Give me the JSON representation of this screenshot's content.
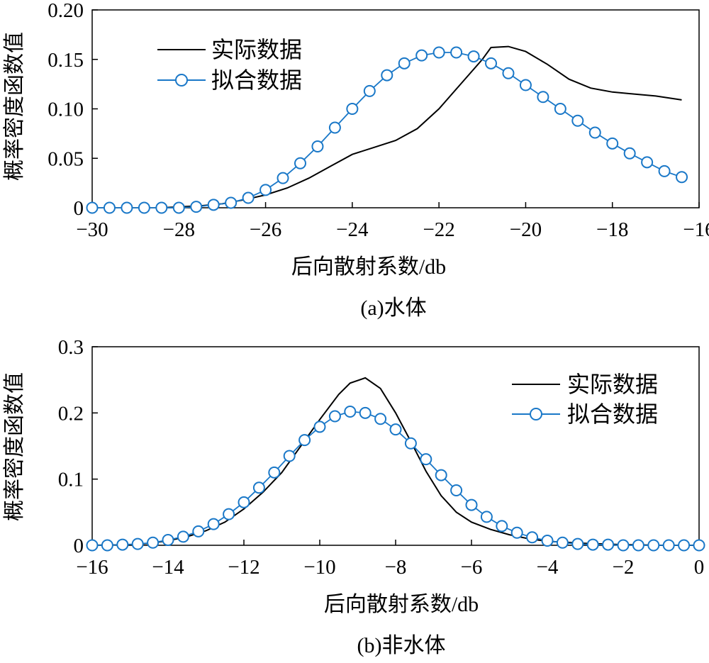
{
  "chart_data": [
    {
      "type": "line",
      "caption": "(a)水体",
      "xlabel": "后向散射系数/db",
      "ylabel": "概率密度函数值",
      "xlim": [
        -30,
        -16
      ],
      "ylim": [
        0,
        0.2
      ],
      "xticks": [
        -30,
        -28,
        -26,
        -24,
        -22,
        -20,
        -18,
        -16
      ],
      "yticks": [
        0,
        0.05,
        0.1,
        0.15,
        0.2
      ],
      "xtick_labels": [
        "−30",
        "−28",
        "−26",
        "−24",
        "−22",
        "−20",
        "−18",
        "−16"
      ],
      "ytick_labels": [
        "0",
        "0.05",
        "0.10",
        "0.15",
        "0.20"
      ],
      "legend_position": "top-left",
      "grid": false,
      "series": [
        {
          "name": "实际数据",
          "style": "line",
          "color": "#000000",
          "x": [
            -28.4,
            -27.5,
            -27.0,
            -26.5,
            -26.0,
            -25.5,
            -25.0,
            -24.5,
            -24.0,
            -23.5,
            -23.0,
            -22.5,
            -22.0,
            -21.5,
            -21.0,
            -20.8,
            -20.4,
            -20.0,
            -19.5,
            -19.0,
            -18.5,
            -18.0,
            -17.5,
            -17.0,
            -16.4
          ],
          "values": [
            0.0,
            0.002,
            0.004,
            0.008,
            0.013,
            0.02,
            0.03,
            0.042,
            0.054,
            0.061,
            0.068,
            0.08,
            0.1,
            0.125,
            0.15,
            0.162,
            0.163,
            0.158,
            0.145,
            0.13,
            0.121,
            0.117,
            0.115,
            0.113,
            0.109
          ]
        },
        {
          "name": "拟合数据",
          "style": "line-circle",
          "color": "#1a78c8",
          "x": [
            -30.0,
            -29.6,
            -29.2,
            -28.8,
            -28.4,
            -28.0,
            -27.6,
            -27.2,
            -26.8,
            -26.4,
            -26.0,
            -25.6,
            -25.2,
            -24.8,
            -24.4,
            -24.0,
            -23.6,
            -23.2,
            -22.8,
            -22.4,
            -22.0,
            -21.6,
            -21.2,
            -20.8,
            -20.4,
            -20.0,
            -19.6,
            -19.2,
            -18.8,
            -18.4,
            -18.0,
            -17.6,
            -17.2,
            -16.8,
            -16.4
          ],
          "values": [
            0.0,
            0.0,
            0.0,
            0.0,
            0.0,
            0.0,
            0.001,
            0.003,
            0.005,
            0.01,
            0.018,
            0.03,
            0.045,
            0.062,
            0.081,
            0.1,
            0.118,
            0.134,
            0.146,
            0.154,
            0.157,
            0.157,
            0.153,
            0.146,
            0.136,
            0.124,
            0.112,
            0.1,
            0.088,
            0.076,
            0.065,
            0.055,
            0.046,
            0.037,
            0.031
          ]
        }
      ]
    },
    {
      "type": "line",
      "caption": "(b)非水体",
      "xlabel": "后向散射系数/db",
      "ylabel": "概率密度函数值",
      "xlim": [
        -16,
        0
      ],
      "ylim": [
        0,
        0.3
      ],
      "xticks": [
        -16,
        -14,
        -12,
        -10,
        -8,
        -6,
        -4,
        -2,
        0
      ],
      "yticks": [
        0,
        0.1,
        0.2,
        0.3
      ],
      "xtick_labels": [
        "−16",
        "−14",
        "−12",
        "−10",
        "−8",
        "−6",
        "−4",
        "−2",
        "0"
      ],
      "ytick_labels": [
        "0",
        "0.1",
        "0.2",
        "0.3"
      ],
      "legend_position": "top-right",
      "grid": false,
      "series": [
        {
          "name": "实际数据",
          "style": "line",
          "color": "#000000",
          "x": [
            -16.0,
            -15.0,
            -14.5,
            -14.0,
            -13.5,
            -13.0,
            -12.5,
            -12.0,
            -11.5,
            -11.0,
            -10.5,
            -10.0,
            -9.5,
            -9.2,
            -8.8,
            -8.4,
            -8.0,
            -7.6,
            -7.2,
            -6.8,
            -6.4,
            -6.0,
            -5.5,
            -5.0,
            -4.5,
            -4.0,
            -3.0,
            -2.0,
            -1.0,
            0.0
          ],
          "values": [
            0.0,
            0.001,
            0.003,
            0.007,
            0.013,
            0.022,
            0.035,
            0.055,
            0.08,
            0.11,
            0.15,
            0.19,
            0.228,
            0.245,
            0.253,
            0.237,
            0.2,
            0.157,
            0.112,
            0.075,
            0.05,
            0.035,
            0.024,
            0.016,
            0.01,
            0.006,
            0.003,
            0.001,
            0.0,
            0.0
          ]
        },
        {
          "name": "拟合数据",
          "style": "line-circle",
          "color": "#1a78c8",
          "x": [
            -16.0,
            -15.6,
            -15.2,
            -14.8,
            -14.4,
            -14.0,
            -13.6,
            -13.2,
            -12.8,
            -12.4,
            -12.0,
            -11.6,
            -11.2,
            -10.8,
            -10.4,
            -10.0,
            -9.6,
            -9.2,
            -8.8,
            -8.4,
            -8.0,
            -7.6,
            -7.2,
            -6.8,
            -6.4,
            -6.0,
            -5.6,
            -5.2,
            -4.8,
            -4.4,
            -4.0,
            -3.6,
            -3.2,
            -2.8,
            -2.4,
            -2.0,
            -1.6,
            -1.2,
            -0.8,
            -0.4,
            0.0
          ],
          "values": [
            0.0,
            0.0,
            0.001,
            0.002,
            0.004,
            0.008,
            0.013,
            0.021,
            0.032,
            0.047,
            0.065,
            0.087,
            0.11,
            0.135,
            0.159,
            0.179,
            0.195,
            0.202,
            0.2,
            0.191,
            0.175,
            0.154,
            0.13,
            0.106,
            0.083,
            0.061,
            0.043,
            0.029,
            0.019,
            0.012,
            0.007,
            0.004,
            0.002,
            0.001,
            0.001,
            0.0,
            0.0,
            0.0,
            0.0,
            0.0,
            0.0
          ]
        }
      ]
    }
  ]
}
